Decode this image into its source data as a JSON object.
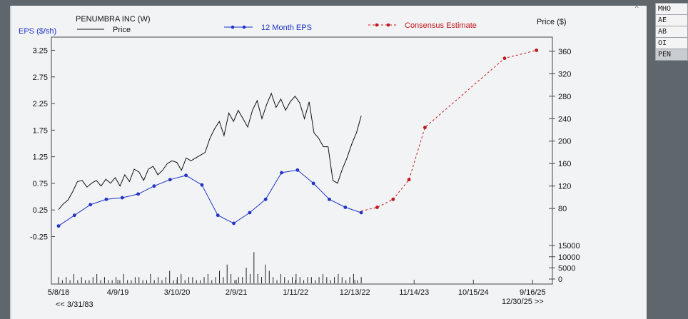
{
  "window": {
    "side_list": [
      {
        "label": "MHO",
        "selected": false
      },
      {
        "label": "AE",
        "selected": false
      },
      {
        "label": "AB",
        "selected": false
      },
      {
        "label": "OI",
        "selected": false
      },
      {
        "label": "PEN",
        "selected": true
      }
    ],
    "collapse_icon": "chevron-up-icon"
  },
  "chart_data": {
    "type": "line",
    "title": "PENUMBRA INC (W)",
    "legend": {
      "price_label": "Price",
      "eps_label": "12 Month EPS",
      "consensus_label": "Consensus Estimate",
      "placement": "top"
    },
    "left_axis": {
      "label": "EPS ($/sh)",
      "ticks": [
        "3.25",
        "2.75",
        "2.25",
        "1.75",
        "1.25",
        "0.75",
        "0.25",
        "-0.25"
      ],
      "tick_values": [
        3.25,
        2.75,
        2.25,
        1.75,
        1.25,
        0.75,
        0.25,
        -0.25
      ]
    },
    "right_axis": {
      "label": "Price ($)",
      "ticks": [
        "360",
        "320",
        "280",
        "240",
        "200",
        "160",
        "120",
        "80"
      ],
      "tick_values": [
        360,
        320,
        280,
        240,
        200,
        160,
        120,
        80
      ]
    },
    "volume_axis": {
      "ticks": [
        "15000",
        "10000",
        "5000",
        "0"
      ],
      "tick_values": [
        15000,
        10000,
        5000,
        0
      ]
    },
    "x_axis": {
      "ticks": [
        "5/8/18",
        "4/9/19",
        "3/10/20",
        "2/9/21",
        "1/11/22",
        "12/13/22",
        "11/14/23",
        "10/15/24",
        "9/16/25"
      ],
      "tick_index": [
        0,
        48,
        96,
        144,
        192,
        240,
        288,
        336,
        384
      ],
      "range_start": "<< 3/31/83",
      "range_end": "12/30/25 >>"
    },
    "colors": {
      "price": "#111111",
      "eps": "#1f33c8",
      "consensus": "#c0161c"
    },
    "series": [
      {
        "name": "12 Month EPS",
        "x": [
          "3/2018",
          "6/2018",
          "9/2018",
          "12/2018",
          "3/2019",
          "6/2019",
          "9/2019",
          "12/2019",
          "3/2020",
          "6/2020",
          "9/2020",
          "12/2020",
          "3/2021",
          "6/2021",
          "9/2021",
          "12/2021",
          "3/2022",
          "6/2022",
          "9/2022",
          "12/2022"
        ],
        "values": [
          -0.05,
          0.15,
          0.35,
          0.45,
          0.48,
          0.55,
          0.7,
          0.82,
          0.9,
          0.72,
          0.15,
          0.0,
          0.2,
          0.45,
          0.95,
          1.0,
          0.75,
          0.45,
          0.3,
          0.2
        ]
      },
      {
        "name": "Consensus Estimate",
        "x": [
          "12/2022",
          "3/2023",
          "6/2023",
          "9/2023",
          "12/2023",
          "3/2025",
          "9/2025"
        ],
        "values": [
          0.23,
          0.3,
          0.45,
          0.82,
          1.8,
          3.1,
          3.25
        ]
      },
      {
        "name": "Price",
        "start": "3/2018",
        "end": "12/2022",
        "values": [
          78,
          88,
          95,
          110,
          128,
          130,
          118,
          125,
          130,
          120,
          132,
          125,
          135,
          120,
          140,
          128,
          150,
          145,
          130,
          150,
          155,
          140,
          148,
          160,
          165,
          162,
          148,
          170,
          165,
          170,
          175,
          180,
          205,
          222,
          235,
          210,
          250,
          235,
          255,
          240,
          225,
          255,
          272,
          240,
          265,
          285,
          260,
          275,
          255,
          270,
          280,
          268,
          240,
          270,
          215,
          205,
          190,
          190,
          130,
          125,
          150,
          170,
          195,
          215,
          245
        ]
      },
      {
        "name": "Volume",
        "values": [
          2,
          1,
          2,
          1,
          3,
          1,
          2,
          1,
          1,
          2,
          3,
          1,
          2,
          1,
          1,
          2,
          1,
          3,
          1,
          1,
          2,
          2,
          1,
          1,
          3,
          1,
          2,
          1,
          2,
          4,
          1,
          2,
          3,
          1,
          2,
          2,
          1,
          1,
          2,
          3,
          1,
          2,
          4,
          2,
          6,
          3,
          1,
          2,
          2,
          5,
          3,
          10,
          3,
          2,
          6,
          4,
          2,
          1,
          3,
          2,
          1,
          2,
          3,
          2,
          1,
          2,
          2,
          1,
          2,
          3,
          2,
          1,
          2,
          3,
          2,
          1,
          2,
          3,
          1,
          2
        ]
      }
    ],
    "grid": false
  }
}
